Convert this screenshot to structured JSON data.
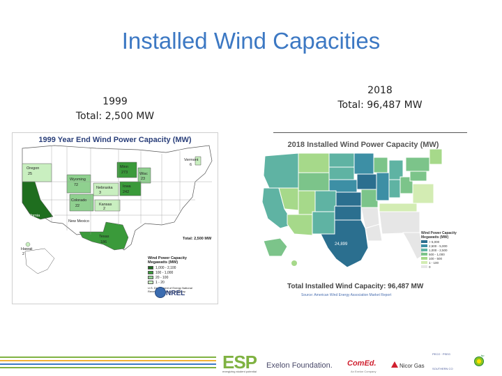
{
  "slide": {
    "title": "Installed Wind Capacities"
  },
  "left": {
    "year": "1999",
    "total": "Total: 2,500 MW",
    "map_title": "1999 Year End Wind Power Capacity (MW)",
    "states": [
      {
        "name": "Oregon",
        "value": "25"
      },
      {
        "name": "Wyoming",
        "value": "72"
      },
      {
        "name": "Colorado",
        "value": "22"
      },
      {
        "name": "Nebraska",
        "value": "3"
      },
      {
        "name": "Kansas",
        "value": "2"
      },
      {
        "name": "New Mexico",
        "value": ""
      },
      {
        "name": "Texas",
        "value": "186"
      },
      {
        "name": "Minn",
        "value": "273"
      },
      {
        "name": "Wisc",
        "value": "23"
      },
      {
        "name": "Iowa",
        "value": "242"
      },
      {
        "name": "Vermont",
        "value": "6"
      },
      {
        "name": "California",
        "value": "1,646"
      },
      {
        "name": "Hawaii",
        "value": "2"
      }
    ],
    "total_label": "Total: 2,500 MW",
    "legend_title": "Wind Power Capacity Megawatts (MW)",
    "legend": [
      {
        "range": "1,000 - 2,100",
        "color": "#1f6e1f"
      },
      {
        "range": "100 - 1,000",
        "color": "#3a9a3a"
      },
      {
        "range": "20 - 100",
        "color": "#8fd08f"
      },
      {
        "range": "1 - 20",
        "color": "#c9efc0"
      }
    ],
    "credit": "U.S. Department of Energy National Renewable Energy Laboratory",
    "logo": "NREL"
  },
  "right": {
    "year": "2018",
    "total": "Total: 96,487 MW",
    "map_title": "2018 Installed Wind Power Capacity (MW)",
    "total_label": "Total Installed Wind Capacity: 96,487 MW",
    "source": "Source: American Wind Energy Association Market Report",
    "texas_value": "24,899",
    "legend_title": "Wind Power Capacity Megawatts (MW)",
    "legend": [
      {
        "range": "> 5,000",
        "color": "#2b6f8f"
      },
      {
        "range": "2,500 - 5,000",
        "color": "#3d8fa5"
      },
      {
        "range": "1,000 - 2,500",
        "color": "#5fb3a3"
      },
      {
        "range": "500 - 1,000",
        "color": "#7cc48a"
      },
      {
        "range": "100 - 500",
        "color": "#a6d98a"
      },
      {
        "range": "1 - 100",
        "color": "#d3ecb3"
      },
      {
        "range": "0",
        "color": "#e6e6e6"
      }
    ]
  },
  "footer": {
    "esp": "ESP",
    "esp_sub": "energizing student potential",
    "exelon": "Exelon Foundation.",
    "comed": "ComEd.",
    "comed_sub": "An Exelon Company",
    "nicor": "Nicor Gas",
    "bp": "bp",
    "mini1": "PECO · PSEG",
    "mini2": "SOUTHERN CO"
  },
  "colors": {
    "title": "#3c78c3",
    "footer_lines": [
      "#7fb241",
      "#f2b134",
      "#3c78c3",
      "#7fb241"
    ]
  }
}
